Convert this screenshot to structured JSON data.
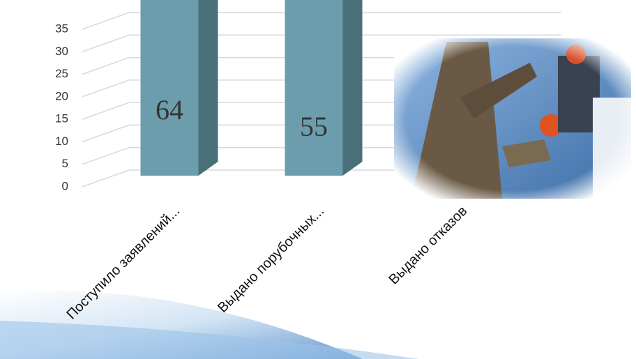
{
  "chart_data": {
    "type": "bar3d",
    "categories": [
      "Поступило заявлений...",
      "Выдано порубочных...",
      "Выдано отказов"
    ],
    "values": [
      64,
      55,
      null
    ],
    "value_labels": [
      "64",
      "55",
      null
    ],
    "color": "#6c9dac",
    "ylim": [
      0,
      35
    ],
    "yticks": [
      0,
      5,
      10,
      15,
      20,
      25,
      30,
      35
    ],
    "grid": true
  }
}
